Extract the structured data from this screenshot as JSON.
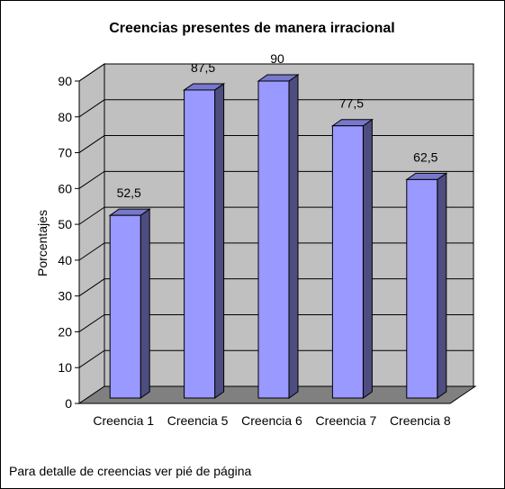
{
  "chart_data": {
    "type": "bar",
    "title": "Creencias presentes de manera irracional",
    "xlabel": "",
    "ylabel": "Porcentajes",
    "categories": [
      "Creencia 1",
      "Creencia 5",
      "Creencia 6",
      "Creencia 7",
      "Creencia 8"
    ],
    "values": [
      52.5,
      87.5,
      90,
      77.5,
      62.5
    ],
    "value_labels": [
      "52,5",
      "87,5",
      "90",
      "77,5",
      "62,5"
    ],
    "ylim": [
      0,
      90
    ],
    "yticks": [
      "0",
      "10",
      "20",
      "30",
      "40",
      "50",
      "60",
      "70",
      "80",
      "90"
    ],
    "grid": true,
    "style": "3d-column",
    "colors": {
      "bar_front": "#9999FF",
      "bar_side": "#4D4D80",
      "bar_top": "#7777CC",
      "wall": "#C0C0C0",
      "floor": "#808080"
    }
  },
  "footnote": "Para detalle de creencias ver pié de página"
}
